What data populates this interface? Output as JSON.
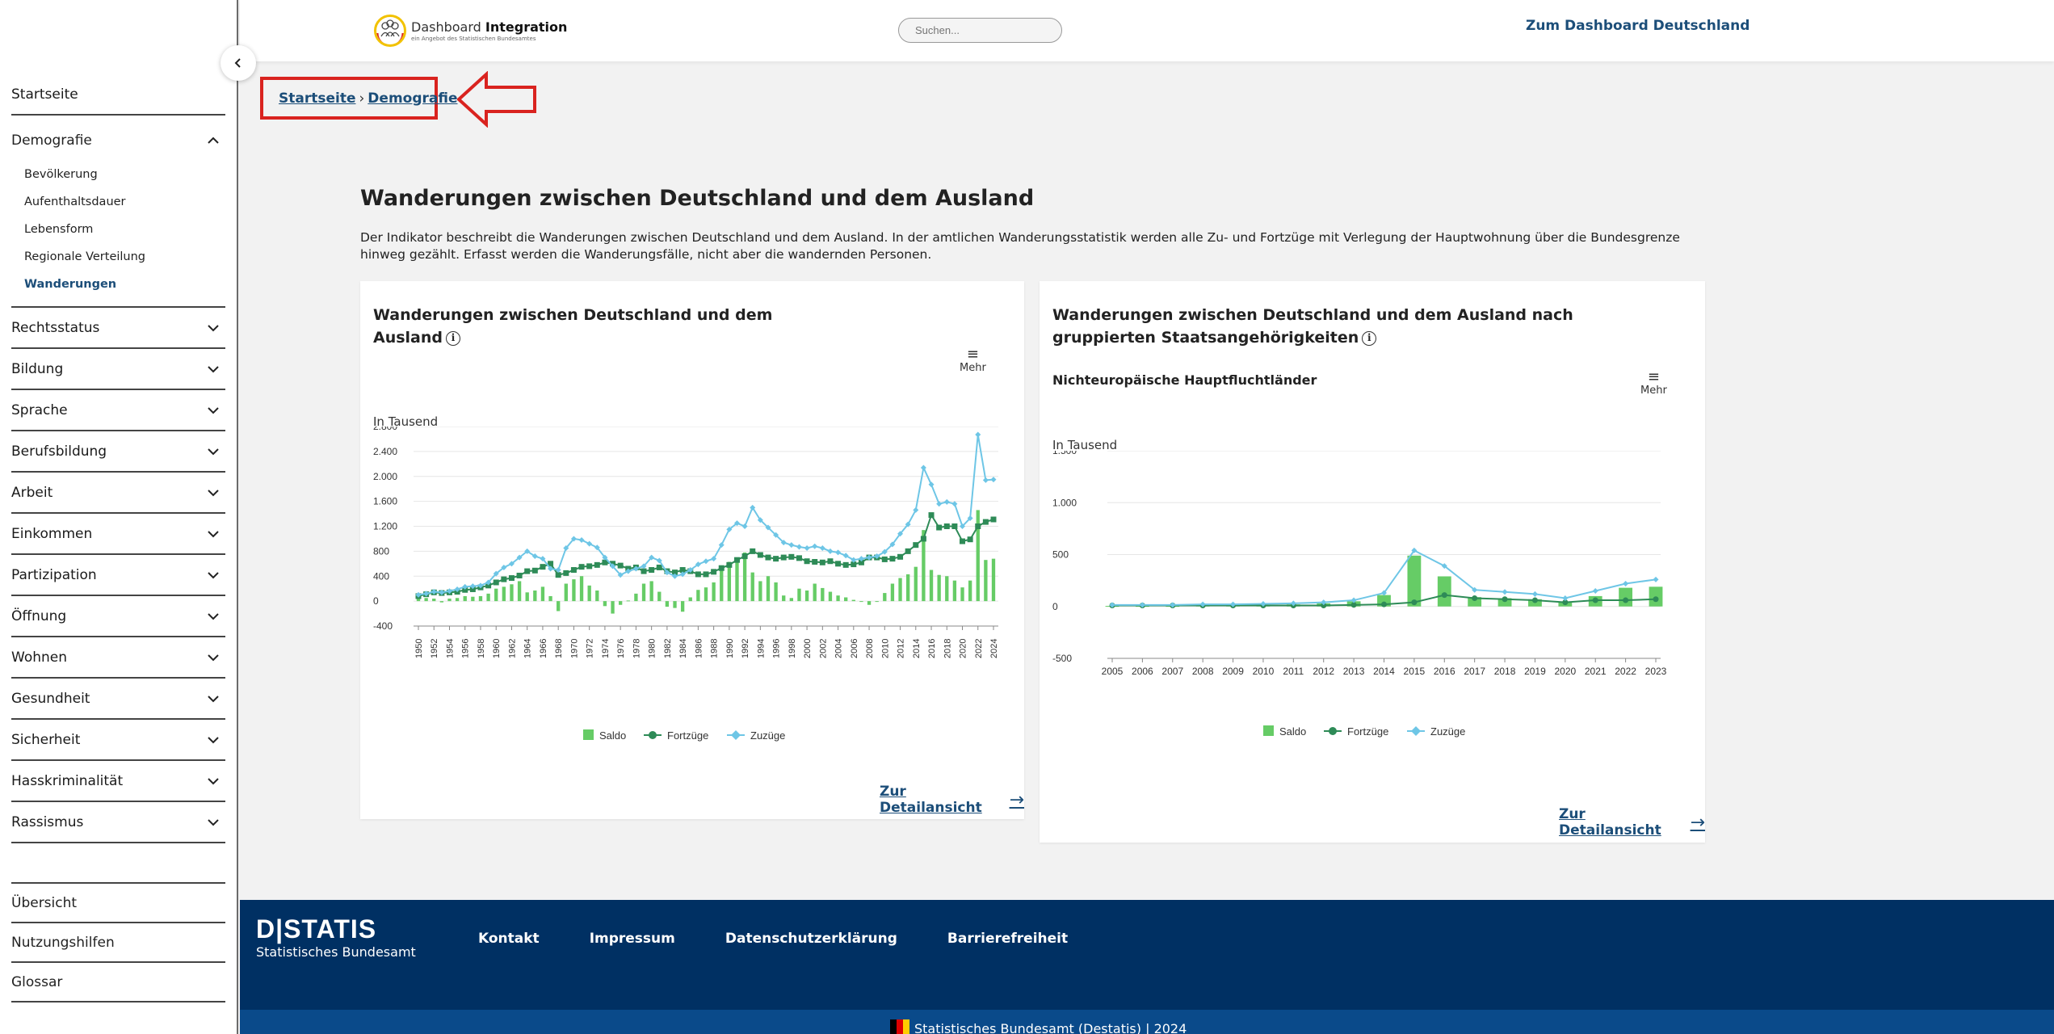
{
  "sidebar": {
    "top_item": "Startseite",
    "group": {
      "label": "Demografie",
      "items": [
        "Bevölkerung",
        "Aufenthaltsdauer",
        "Lebensform",
        "Regionale Verteilung",
        "Wanderungen"
      ],
      "active": "Wanderungen"
    },
    "items": [
      "Rechtsstatus",
      "Bildung",
      "Sprache",
      "Berufsbildung",
      "Arbeit",
      "Einkommen",
      "Partizipation",
      "Öffnung",
      "Wohnen",
      "Gesundheit",
      "Sicherheit",
      "Hasskriminalität",
      "Rassismus"
    ],
    "bottom_items": [
      "Übersicht",
      "Nutzungshilfen",
      "Glossar"
    ]
  },
  "header": {
    "logo_main_1": "Dashboard ",
    "logo_main_2": "Integration",
    "logo_sub": "ein Angebot des Statistischen Bundesamtes",
    "search_placeholder": "Suchen...",
    "link": "Zum Dashboard Deutschland"
  },
  "breadcrumb": {
    "home": "Startseite",
    "sep": "›",
    "current": "Demografie"
  },
  "page": {
    "title": "Wanderungen zwischen Deutschland und dem Ausland",
    "description": "Der Indikator beschreibt die Wanderungen zwischen Deutschland und dem Ausland. In der amtlichen Wanderungsstatistik werden alle Zu- und Fortzüge mit Verlegung der Hauptwohnung über die Bundesgrenze hinweg gezählt. Erfasst werden die Wanderungsfälle, nicht aber die wandernden Personen."
  },
  "cards": [
    {
      "title": "Wanderungen zwischen Deutschland und dem Ausland",
      "more": "Mehr",
      "unit": "In Tausend",
      "link": "Zur Detailansicht"
    },
    {
      "title": "Wanderungen zwischen Deutschland und dem Ausland nach gruppierten Staatsangehörigkeiten",
      "subtitle": "Nichteuropäische Hauptfluchtländer",
      "more": "Mehr",
      "unit": "In Tausend",
      "link": "Zur Detailansicht"
    }
  ],
  "footer": {
    "brand": "D|STATIS",
    "brand_sub": "Statistisches Bundesamt",
    "links": [
      "Kontakt",
      "Impressum",
      "Datenschutzerklärung",
      "Barrierefreiheit"
    ],
    "copyright": "Statistisches Bundesamt (Destatis) | 2024"
  },
  "colors": {
    "saldo": "#66cc66",
    "fortzuege": "#2e8b57",
    "zuzuege": "#6ec6e6",
    "accent": "#1c4e79",
    "footer": "#003063"
  },
  "chart_data": [
    {
      "type": "bar+line",
      "ylim": [
        -400,
        2800
      ],
      "yticks": [
        -400,
        0,
        400,
        800,
        1200,
        1600,
        2000,
        2400,
        2800
      ],
      "ytick_labels": [
        "-400",
        "0",
        "400",
        "800",
        "1.200",
        "1.600",
        "2.000",
        "2.400",
        "2.800"
      ],
      "x": [
        1950,
        1951,
        1952,
        1953,
        1954,
        1955,
        1956,
        1957,
        1958,
        1959,
        1960,
        1961,
        1962,
        1963,
        1964,
        1965,
        1966,
        1967,
        1968,
        1969,
        1970,
        1971,
        1972,
        1973,
        1974,
        1975,
        1976,
        1977,
        1978,
        1979,
        1980,
        1981,
        1982,
        1983,
        1984,
        1985,
        1986,
        1987,
        1988,
        1989,
        1990,
        1991,
        1992,
        1993,
        1994,
        1995,
        1996,
        1997,
        1998,
        1999,
        2000,
        2001,
        2002,
        2003,
        2004,
        2005,
        2006,
        2007,
        2008,
        2009,
        2010,
        2011,
        2012,
        2013,
        2014,
        2015,
        2016,
        2017,
        2018,
        2019,
        2020,
        2021,
        2022,
        2023,
        2024
      ],
      "xtick_labels": [
        "1950",
        "1952",
        "1954",
        "1956",
        "1958",
        "1960",
        "1962",
        "1964",
        "1966",
        "1968",
        "1970",
        "1972",
        "1974",
        "1976",
        "1978",
        "1980",
        "1982",
        "1984",
        "1986",
        "1988",
        "1990",
        "1992",
        "1994",
        "1996",
        "1998",
        "2000",
        "2002",
        "2004",
        "2006",
        "2008",
        "2010",
        "2012",
        "2014",
        "2016",
        "2018",
        "2020",
        "2022",
        "2024"
      ],
      "legend": [
        "Saldo",
        "Fortzüge",
        "Zuzüge"
      ],
      "series": [
        {
          "name": "Saldo",
          "kind": "bar",
          "values": [
            40,
            50,
            40,
            -20,
            40,
            50,
            80,
            70,
            80,
            120,
            200,
            230,
            270,
            320,
            140,
            170,
            230,
            80,
            -160,
            280,
            350,
            400,
            250,
            170,
            -80,
            -200,
            -60,
            10,
            120,
            280,
            320,
            150,
            -90,
            -110,
            -170,
            60,
            180,
            220,
            300,
            500,
            630,
            680,
            780,
            460,
            320,
            400,
            300,
            90,
            50,
            200,
            170,
            280,
            210,
            150,
            90,
            60,
            20,
            -10,
            -60,
            -10,
            130,
            280,
            370,
            430,
            550,
            1140,
            500,
            420,
            400,
            330,
            220,
            330,
            1460,
            660,
            680
          ]
        },
        {
          "name": "Fortzüge",
          "kind": "line",
          "values": [
            80,
            110,
            140,
            130,
            140,
            150,
            180,
            190,
            220,
            250,
            300,
            350,
            370,
            410,
            480,
            490,
            550,
            600,
            420,
            450,
            500,
            550,
            560,
            580,
            620,
            600,
            570,
            520,
            540,
            480,
            500,
            540,
            480,
            460,
            500,
            480,
            430,
            430,
            470,
            530,
            580,
            660,
            720,
            800,
            740,
            700,
            680,
            700,
            710,
            690,
            640,
            630,
            620,
            640,
            600,
            580,
            590,
            620,
            700,
            700,
            670,
            680,
            710,
            800,
            900,
            1000,
            1380,
            1180,
            1200,
            1200,
            960,
            990,
            1200,
            1270,
            1310
          ]
        },
        {
          "name": "Zuzüge",
          "kind": "line",
          "values": [
            100,
            120,
            150,
            140,
            160,
            190,
            230,
            240,
            250,
            300,
            440,
            540,
            600,
            700,
            800,
            720,
            680,
            520,
            500,
            850,
            1000,
            980,
            920,
            860,
            700,
            560,
            420,
            480,
            520,
            560,
            700,
            650,
            460,
            400,
            430,
            500,
            590,
            640,
            680,
            900,
            1150,
            1250,
            1200,
            1500,
            1300,
            1180,
            1060,
            940,
            900,
            870,
            850,
            880,
            850,
            800,
            780,
            730,
            660,
            680,
            700,
            720,
            790,
            910,
            1080,
            1230,
            1460,
            2140,
            1870,
            1560,
            1590,
            1560,
            1200,
            1330,
            2670,
            1940,
            1950
          ]
        }
      ]
    },
    {
      "type": "bar+line",
      "subtitle": "Nichteuropäische Hauptfluchtländer",
      "ylim": [
        -500,
        1500
      ],
      "yticks": [
        -500,
        0,
        500,
        1000,
        1500
      ],
      "ytick_labels": [
        "-500",
        "0",
        "500",
        "1.000",
        "1.500"
      ],
      "x": [
        2005,
        2006,
        2007,
        2008,
        2009,
        2010,
        2011,
        2012,
        2013,
        2014,
        2015,
        2016,
        2017,
        2018,
        2019,
        2020,
        2021,
        2022,
        2023
      ],
      "legend": [
        "Saldo",
        "Fortzüge",
        "Zuzüge"
      ],
      "series": [
        {
          "name": "Saldo",
          "kind": "bar",
          "values": [
            5,
            5,
            5,
            10,
            10,
            10,
            20,
            30,
            50,
            110,
            490,
            290,
            90,
            80,
            70,
            40,
            100,
            180,
            190
          ]
        },
        {
          "name": "Fortzüge",
          "kind": "line",
          "values": [
            10,
            10,
            10,
            10,
            10,
            10,
            10,
            10,
            15,
            20,
            40,
            110,
            80,
            70,
            60,
            40,
            60,
            60,
            70
          ]
        },
        {
          "name": "Zuzüge",
          "kind": "line",
          "values": [
            15,
            15,
            15,
            20,
            20,
            25,
            30,
            40,
            60,
            130,
            540,
            390,
            160,
            140,
            120,
            80,
            150,
            220,
            260
          ]
        }
      ]
    }
  ]
}
